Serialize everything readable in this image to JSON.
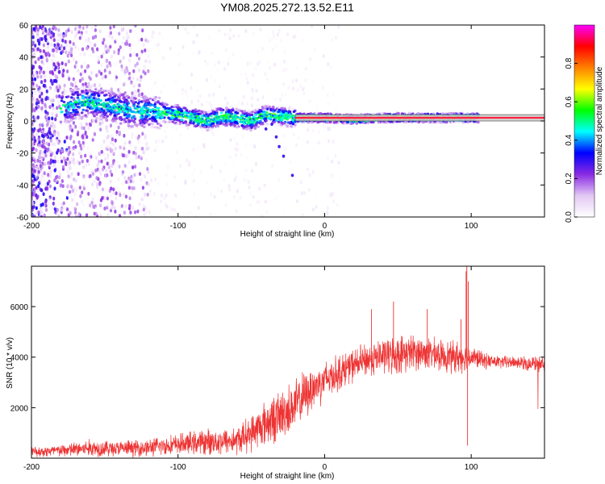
{
  "figure_title": "YM08.2025.272.13.52.E11",
  "chart_data": [
    {
      "type": "heatmap",
      "title": "YM08.2025.272.13.52.E11",
      "xlabel": "Height of straight line (km)",
      "ylabel": "Frequency (Hz)",
      "xlim": [
        -200,
        150
      ],
      "ylim": [
        -60,
        60
      ],
      "x_ticks": [
        -200,
        -100,
        0,
        100
      ],
      "x_tick_labels": [
        "-200",
        "-100",
        "0",
        "100"
      ],
      "y_ticks": [
        -60,
        -40,
        -20,
        0,
        20,
        40,
        60
      ],
      "y_tick_labels": [
        "-60",
        "-40",
        "-20",
        "0",
        "20",
        "40",
        "60"
      ],
      "colorbar": {
        "label": "Normalized spectral amplitude",
        "range": [
          0,
          1
        ],
        "ticks": [
          0.0,
          0.2,
          0.4,
          0.6,
          0.8
        ],
        "tick_labels": [
          "0.0",
          "0.2",
          "0.4",
          "0.6",
          "0.8"
        ],
        "colors": [
          "#ffffff",
          "#e2c8f4",
          "#8a2be2",
          "#0000ff",
          "#00ffff",
          "#00ff00",
          "#ffff00",
          "#ff8000",
          "#ff0000",
          "#ff00ff"
        ]
      },
      "ridge": {
        "x": [
          -178,
          -170,
          -160,
          -150,
          -140,
          -130,
          -120,
          -110,
          -100,
          -90,
          -80,
          -70,
          -60,
          -50,
          -40,
          -30,
          -20,
          0,
          20,
          40,
          60,
          80,
          100,
          105
        ],
        "y": [
          8,
          11,
          12,
          10,
          8,
          6,
          6,
          5,
          4,
          2,
          0,
          3,
          2,
          0,
          4,
          3,
          2,
          2,
          1,
          2,
          2,
          2,
          2,
          2
        ]
      },
      "constant_line": {
        "x": [
          -20,
          150
        ],
        "y": 2,
        "band": [
          0,
          4
        ],
        "color": "#ff2040"
      }
    },
    {
      "type": "line",
      "title": "",
      "xlabel": "Height of straight line (km)",
      "ylabel": "SNR (10 * v/v)",
      "xlim": [
        -200,
        150
      ],
      "ylim": [
        0,
        7600
      ],
      "x_ticks": [
        -200,
        -100,
        0,
        100
      ],
      "x_tick_labels": [
        "-200",
        "-100",
        "0",
        "100"
      ],
      "y_ticks": [
        2000,
        4000,
        6000
      ],
      "y_tick_labels": [
        "2000",
        "4000",
        "6000"
      ],
      "color": "#ee3333",
      "envelope": {
        "x": [
          -200,
          -180,
          -160,
          -140,
          -120,
          -100,
          -80,
          -60,
          -50,
          -40,
          -30,
          -20,
          -10,
          0,
          10,
          20,
          30,
          40,
          50,
          60,
          70,
          80,
          90,
          100,
          110,
          120,
          130,
          140,
          150
        ],
        "mean": [
          250,
          300,
          400,
          380,
          420,
          550,
          650,
          700,
          1000,
          1400,
          1700,
          2100,
          2700,
          3100,
          3400,
          3700,
          3900,
          4050,
          4100,
          4200,
          4150,
          4050,
          4000,
          4000,
          3850,
          3800,
          3800,
          3750,
          3700
        ],
        "noise": [
          200,
          250,
          350,
          300,
          350,
          400,
          500,
          550,
          700,
          900,
          1000,
          1000,
          900,
          800,
          700,
          650,
          650,
          700,
          750,
          700,
          650,
          600,
          650,
          450,
          300,
          250,
          250,
          300,
          300
        ]
      },
      "spikes": [
        {
          "x": 97.0,
          "y": 7600
        },
        {
          "x": 96.5,
          "y": 7400
        },
        {
          "x": 98.0,
          "y": 7000
        },
        {
          "x": 97.5,
          "y": 500
        },
        {
          "x": 47.0,
          "y": 6200
        },
        {
          "x": 32.0,
          "y": 5900
        },
        {
          "x": 70.0,
          "y": 5900
        },
        {
          "x": 93.0,
          "y": 5500
        }
      ]
    }
  ]
}
